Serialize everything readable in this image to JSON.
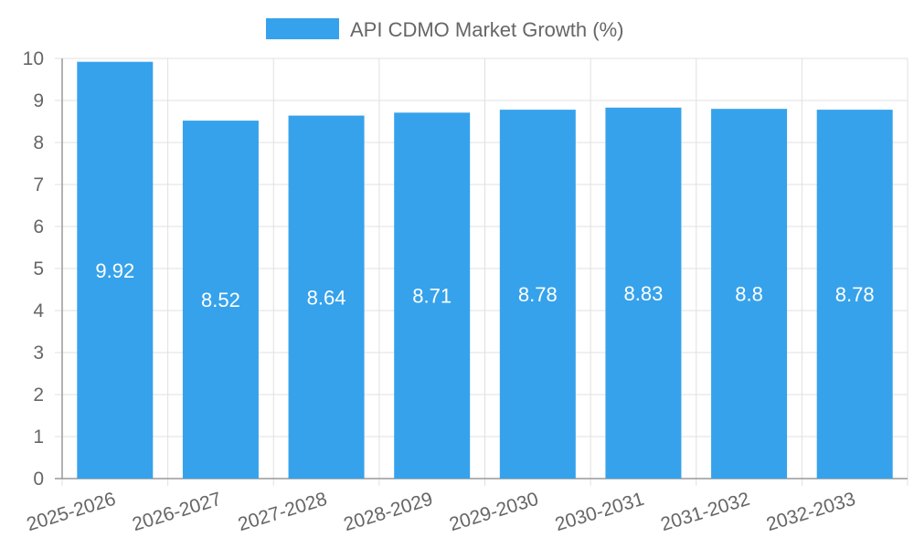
{
  "chart_data": {
    "type": "bar",
    "categories": [
      "2025-2026",
      "2026-2027",
      "2027-2028",
      "2028-2029",
      "2029-2030",
      "2030-2031",
      "2031-2032",
      "2032-2033"
    ],
    "series": [
      {
        "name": "API CDMO Market Growth (%)",
        "values": [
          9.92,
          8.52,
          8.64,
          8.71,
          8.78,
          8.83,
          8.8,
          8.78
        ],
        "color": "#36a2eb"
      }
    ],
    "data_labels": [
      "9.92",
      "8.52",
      "8.64",
      "8.71",
      "8.78",
      "8.83",
      "8.8",
      "8.78"
    ],
    "ylim": [
      0,
      10
    ],
    "yticks": [
      "0",
      "1",
      "2",
      "3",
      "4",
      "5",
      "6",
      "7",
      "8",
      "9",
      "10"
    ],
    "legend": "top",
    "grid": true,
    "colors": {
      "grid": "#e0e0e0",
      "axis": "#999999",
      "text": "#666666",
      "label": "#ffffff"
    }
  }
}
